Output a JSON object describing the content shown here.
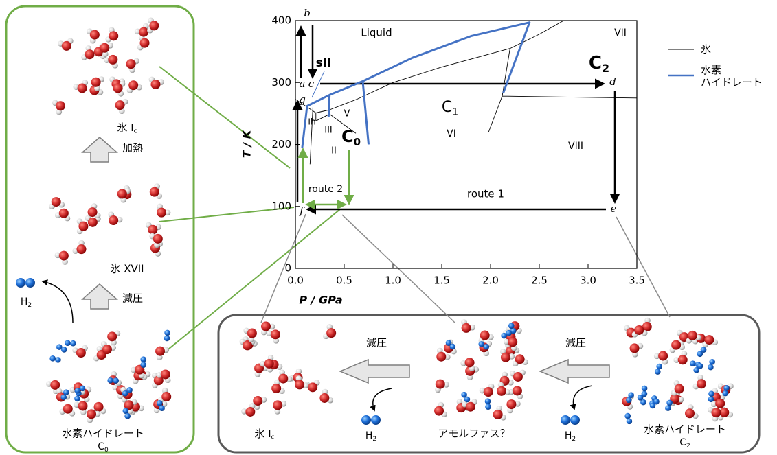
{
  "left_panel": {
    "ice_ic": {
      "label": "氷 I",
      "sub": "c"
    },
    "heating": "加熱",
    "ice_xvii": "氷 XVII",
    "decompression": "減圧",
    "hydrate": {
      "label": "水素ハイドレート",
      "symbol": "C",
      "sub": "0"
    },
    "h2": {
      "label": "H",
      "sub": "2"
    }
  },
  "chart_data": {
    "type": "line",
    "xlabel": "P / GPa",
    "ylabel": "T / K",
    "xlim": [
      0,
      3.5
    ],
    "ylim": [
      0,
      400
    ],
    "xticks": [
      {
        "value": 0,
        "label": "0.0"
      },
      {
        "value": 0.5,
        "label": "0.5"
      },
      {
        "value": 1,
        "label": "1.0"
      },
      {
        "value": 1.5,
        "label": "1.5"
      },
      {
        "value": 2,
        "label": "2.0"
      },
      {
        "value": 2.5,
        "label": "2.5"
      },
      {
        "value": 3,
        "label": "3.0"
      },
      {
        "value": 3.5,
        "label": "3.5"
      }
    ],
    "yticks": [
      0,
      100,
      200,
      300,
      400
    ],
    "series": [
      {
        "name": "氷",
        "color": "#000000",
        "x": [
          0,
          0.21,
          0.35,
          0.63,
          1.0,
          1.5,
          2.2,
          2.5,
          2.75,
          null,
          0.18,
          0.15,
          null,
          0.21,
          0.21,
          0.35,
          0.62,
          null,
          0.35,
          0.35,
          null,
          0.63,
          0.63,
          null,
          2.2,
          2.12,
          1.98,
          null,
          2.12,
          3.5
        ],
        "y": [
          273,
          251,
          256,
          273,
          300,
          325,
          355,
          378,
          400,
          null,
          264,
          168,
          null,
          251,
          238,
          249,
          218,
          null,
          256,
          249,
          null,
          273,
          135,
          null,
          355,
          278,
          220,
          null,
          278,
          275
        ]
      },
      {
        "name": "水素\nハイドレート",
        "color": "#4472c4",
        "x": [
          0.07,
          0.12,
          0.35,
          0.69,
          0.75,
          null,
          0.35,
          0.34,
          null,
          0.69,
          1.2,
          1.8,
          2.4,
          2.13
        ],
        "y": [
          195,
          262,
          280,
          302,
          200,
          null,
          280,
          245,
          null,
          302,
          340,
          375,
          397,
          283
        ]
      }
    ],
    "annotations": [
      {
        "text": "Liquid",
        "color": "#000000"
      },
      {
        "text": "VII",
        "color": "#555555"
      },
      {
        "text": "VI",
        "color": "#555555"
      },
      {
        "text": "VIII",
        "color": "#555555"
      },
      {
        "text": "V",
        "color": "#555555"
      },
      {
        "text": "III",
        "color": "#555555"
      },
      {
        "text": "II",
        "color": "#555555"
      },
      {
        "text": "Ih",
        "color": "#555555"
      },
      {
        "text": "sII",
        "color": "#4472c4"
      },
      {
        "text": "C",
        "sub": "1",
        "color": "#4472c4"
      },
      {
        "text": "C",
        "sub": "2",
        "color": "#4472c4"
      },
      {
        "text": "C",
        "sub": "0",
        "color": "#4472c4"
      },
      {
        "text": "route 1",
        "color": "#333333"
      },
      {
        "text": "route 2",
        "color": "#70ad47"
      },
      {
        "text": "a",
        "color": "#000000"
      },
      {
        "text": "b",
        "color": "#000000"
      },
      {
        "text": "c",
        "color": "#000000"
      },
      {
        "text": "d",
        "color": "#000000"
      },
      {
        "text": "e",
        "color": "#000000"
      },
      {
        "text": "f",
        "color": "#000000"
      },
      {
        "text": "g",
        "color": "#000000"
      }
    ]
  },
  "bottom_panel": {
    "ice_ic": {
      "label": "氷 I",
      "sub": "c"
    },
    "amorphous": "アモルファス？",
    "hydrate": {
      "label": "水素ハイドレート",
      "symbol": "C",
      "sub": "2"
    },
    "decompression_1": "減圧",
    "decompression_2": "減圧",
    "h2_1": {
      "label": "H",
      "sub": "2"
    },
    "h2_2": {
      "label": "H",
      "sub": "2"
    }
  }
}
